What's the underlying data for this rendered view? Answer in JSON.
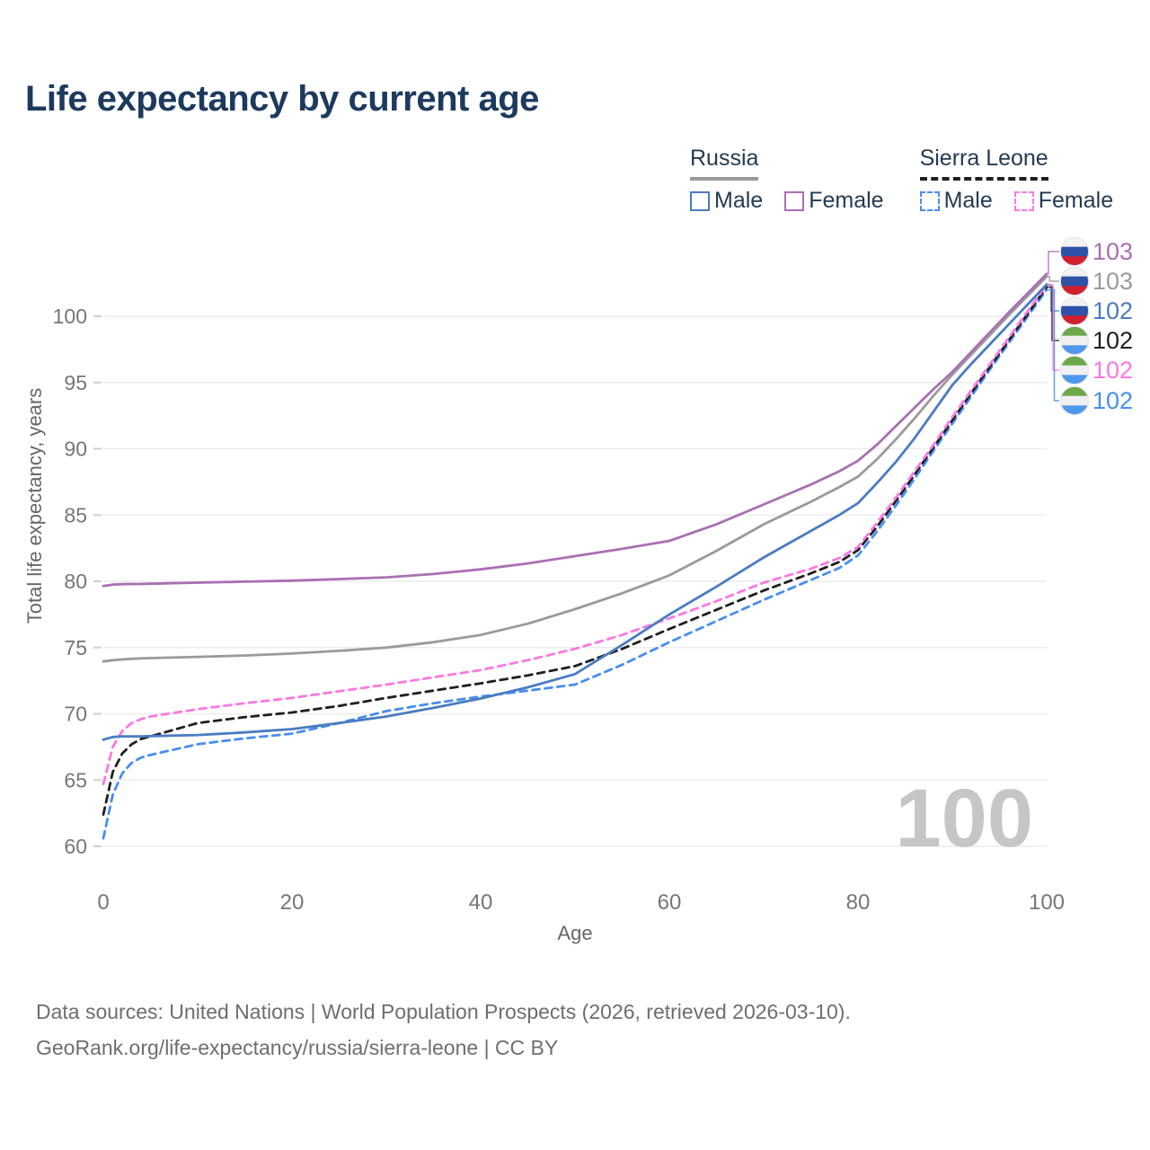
{
  "title": "Life expectancy by current age",
  "legend": {
    "groups": [
      {
        "label": "Russia",
        "line_style": "solid",
        "underline_color": "#9a9a9a",
        "items": [
          {
            "label": "Male",
            "color": "#4a7cc2",
            "line_style": "solid"
          },
          {
            "label": "Female",
            "color": "#a96fb2",
            "line_style": "solid"
          }
        ]
      },
      {
        "label": "Sierra Leone",
        "line_style": "dashed",
        "underline_color": "#1f1f1f",
        "items": [
          {
            "label": "Male",
            "color": "#478ef0",
            "line_style": "dashed"
          },
          {
            "label": "Female",
            "color": "#fa78e2",
            "line_style": "dashed"
          }
        ]
      }
    ]
  },
  "chart_data": {
    "type": "line",
    "title": "Life expectancy by current age",
    "xlabel": "Age",
    "ylabel": "Total life expectancy, years",
    "xlim": [
      0,
      100
    ],
    "ylim": [
      60,
      104
    ],
    "x_ticks": [
      0,
      20,
      40,
      60,
      80,
      100
    ],
    "y_ticks": [
      60,
      65,
      70,
      75,
      80,
      85,
      90,
      95,
      100
    ],
    "grid": "horizontal",
    "legend_position": "top-right",
    "watermark": "100",
    "x": [
      0,
      1,
      2,
      3,
      4,
      5,
      10,
      15,
      20,
      25,
      30,
      35,
      40,
      45,
      50,
      55,
      60,
      65,
      70,
      75,
      78,
      80,
      82,
      84,
      86,
      88,
      90,
      92,
      94,
      96,
      98,
      100
    ],
    "series": [
      {
        "id": "sierra-leone-male",
        "name": "Sierra Leone Male",
        "country": "Sierra Leone",
        "sex": "male",
        "line_style": "dashed",
        "color": "#478ef0",
        "end_label": "102",
        "flag": "sierra-leone",
        "values": [
          60.6,
          63.9,
          65.5,
          66.3,
          66.7,
          66.9,
          67.7,
          68.15,
          68.5,
          69.3,
          70.2,
          70.8,
          71.3,
          71.75,
          72.2,
          73.7,
          75.4,
          77.0,
          78.6,
          80.1,
          81.0,
          81.95,
          83.75,
          85.7,
          87.75,
          89.85,
          91.9,
          93.95,
          96.0,
          98.0,
          100.0,
          102.0
        ]
      },
      {
        "id": "sierra-leone-total",
        "name": "Sierra Leone",
        "country": "Sierra Leone",
        "sex": "both",
        "line_style": "dashed",
        "color": "#1f1f1f",
        "end_label": "102",
        "flag": "sierra-leone",
        "values": [
          62.4,
          65.6,
          67.0,
          67.7,
          68.1,
          68.3,
          69.3,
          69.75,
          70.1,
          70.6,
          71.2,
          71.75,
          72.3,
          72.9,
          73.6,
          74.9,
          76.4,
          77.85,
          79.3,
          80.6,
          81.45,
          82.35,
          84.1,
          86.05,
          88.05,
          90.1,
          92.15,
          94.2,
          96.2,
          98.2,
          100.2,
          102.2
        ]
      },
      {
        "id": "sierra-leone-female",
        "name": "Sierra Leone Female",
        "country": "Sierra Leone",
        "sex": "female",
        "line_style": "dashed",
        "color": "#fa78e2",
        "end_label": "102",
        "flag": "sierra-leone",
        "values": [
          64.7,
          67.5,
          68.7,
          69.3,
          69.6,
          69.8,
          70.35,
          70.8,
          71.2,
          71.7,
          72.2,
          72.75,
          73.3,
          74.05,
          74.9,
          75.95,
          77.2,
          78.5,
          79.9,
          80.95,
          81.75,
          82.6,
          84.4,
          86.3,
          88.3,
          90.3,
          92.4,
          94.4,
          96.4,
          98.4,
          100.4,
          102.35
        ]
      },
      {
        "id": "russia-male",
        "name": "Russia Male",
        "country": "Russia",
        "sex": "male",
        "line_style": "solid",
        "color": "#4a7cc2",
        "end_label": "102",
        "flag": "russia",
        "values": [
          68.05,
          68.25,
          68.3,
          68.3,
          68.3,
          68.32,
          68.4,
          68.6,
          68.85,
          69.3,
          69.8,
          70.45,
          71.15,
          72.0,
          73.0,
          75.2,
          77.5,
          79.6,
          81.8,
          83.8,
          85.0,
          85.9,
          87.4,
          89.0,
          90.8,
          92.8,
          94.8,
          96.4,
          97.9,
          99.4,
          100.9,
          102.4
        ]
      },
      {
        "id": "russia-total",
        "name": "Russia",
        "country": "Russia",
        "sex": "both",
        "line_style": "solid",
        "color": "#9a9a9a",
        "end_label": "103",
        "flag": "russia",
        "values": [
          73.95,
          74.05,
          74.1,
          74.15,
          74.18,
          74.2,
          74.3,
          74.4,
          74.55,
          74.75,
          75.0,
          75.4,
          75.95,
          76.8,
          77.9,
          79.1,
          80.45,
          82.3,
          84.3,
          86.0,
          87.1,
          87.9,
          89.2,
          90.7,
          92.3,
          94.0,
          95.6,
          97.1,
          98.6,
          100.1,
          101.55,
          103.0
        ]
      },
      {
        "id": "russia-female",
        "name": "Russia Female",
        "country": "Russia",
        "sex": "female",
        "line_style": "solid",
        "color": "#a96fb2",
        "end_label": "103",
        "flag": "russia",
        "values": [
          79.65,
          79.75,
          79.78,
          79.8,
          79.8,
          79.82,
          79.9,
          79.97,
          80.05,
          80.17,
          80.3,
          80.55,
          80.9,
          81.35,
          81.9,
          82.45,
          83.05,
          84.3,
          85.8,
          87.3,
          88.3,
          89.1,
          90.3,
          91.7,
          93.1,
          94.5,
          95.8,
          97.3,
          98.8,
          100.3,
          101.75,
          103.2
        ]
      }
    ],
    "end_label_order": [
      "russia-female",
      "russia-total",
      "russia-male",
      "sierra-leone-total",
      "sierra-leone-female",
      "sierra-leone-male"
    ],
    "flag_colors": {
      "russia": [
        "#f2f2f2",
        "#2e52a8",
        "#d01f2f"
      ],
      "sierra-leone": [
        "#6ca749",
        "#f0f0f0",
        "#4e97ea"
      ]
    },
    "colors": {
      "grid": "#ececec",
      "tick_label": "#767676",
      "axis_title": "#666666",
      "watermark": "#c6c6c6",
      "title": "#1d3a5e"
    }
  },
  "footer": {
    "line1": "Data sources: United Nations | World Population Prospects (2026, retrieved 2026-03-10).",
    "line2": "GeoRank.org/life-expectancy/russia/sierra-leone | CC BY"
  }
}
